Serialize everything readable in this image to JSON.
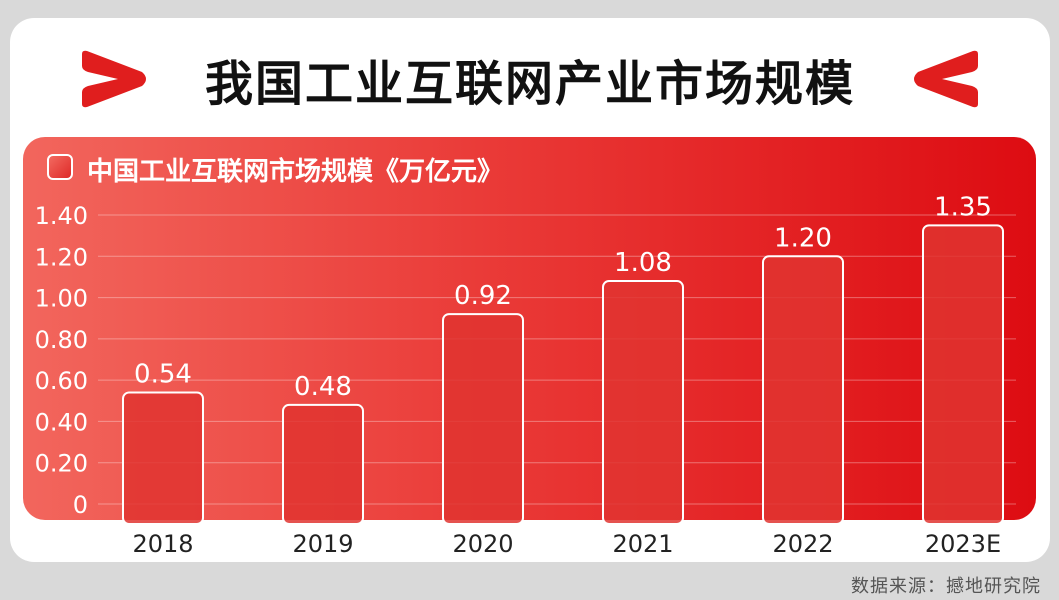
{
  "title": "我国工业互联网产业市场规模",
  "legend_label": "中国工业互联网市场规模《万亿元》",
  "source": "数据来源：撼地研究院",
  "colors": {
    "panel_left": "#f2665d",
    "panel_right": "#dd0c12",
    "bar_fill": "#e8403b",
    "bar_border": "#ffffff",
    "chevron": "#e01e1e",
    "title_text": "#111111"
  },
  "icons": [
    "chevron-right-icon",
    "chevron-left-icon",
    "legend-swatch-icon"
  ],
  "chart_data": {
    "type": "bar",
    "title": "我国工业互联网产业市场规模",
    "categories": [
      "2018",
      "2019",
      "2020",
      "2021",
      "2022",
      "2023E"
    ],
    "series": [
      {
        "name": "中国工业互联网市场规模《万亿元》",
        "values": [
          0.54,
          0.48,
          0.92,
          1.08,
          1.2,
          1.35
        ]
      }
    ],
    "data_labels": [
      "0.54",
      "0.48",
      "0.92",
      "1.08",
      "1.20",
      "1.35"
    ],
    "y_ticks": [
      "0",
      "0.20",
      "0.40",
      "0.60",
      "0.80",
      "1.00",
      "1.20",
      "1.40"
    ],
    "ylim": [
      0,
      1.4
    ],
    "xlabel": "",
    "ylabel": "",
    "grid": true,
    "legend_position": "top-left"
  }
}
